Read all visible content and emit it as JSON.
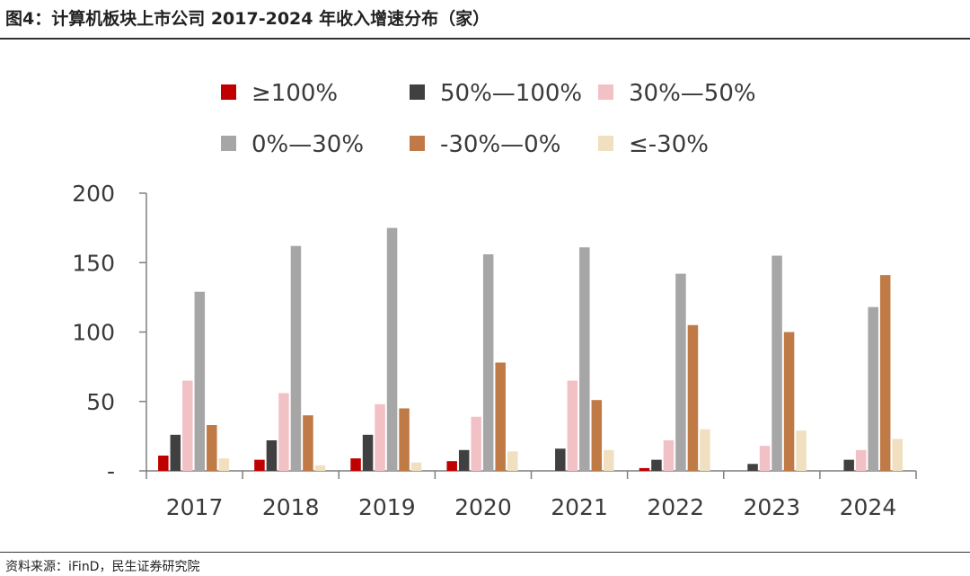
{
  "header": {
    "title": "图4：计算机板块上市公司 2017-2024 年收入增速分布（家）"
  },
  "footer": {
    "source": "资料来源：iFinD，民生证券研究院"
  },
  "chart_data": {
    "type": "bar",
    "categories": [
      "2017",
      "2018",
      "2019",
      "2020",
      "2021",
      "2022",
      "2023",
      "2024"
    ],
    "series": [
      {
        "name": "≥100%",
        "color": "#c00000",
        "values": [
          11,
          8,
          9,
          7,
          0,
          2,
          0,
          0
        ]
      },
      {
        "name": "50%—100%",
        "color": "#404040",
        "values": [
          26,
          22,
          26,
          15,
          16,
          8,
          5,
          8
        ]
      },
      {
        "name": "30%—50%",
        "color": "#f2c1c6",
        "values": [
          65,
          56,
          48,
          39,
          65,
          22,
          18,
          15
        ]
      },
      {
        "name": "0%—30%",
        "color": "#a6a6a6",
        "values": [
          129,
          162,
          175,
          156,
          161,
          142,
          155,
          118
        ]
      },
      {
        "name": "-30%—0%",
        "color": "#c07a45",
        "values": [
          33,
          40,
          45,
          78,
          51,
          105,
          100,
          141
        ]
      },
      {
        "name": "≤-30%",
        "color": "#f0e0c0",
        "values": [
          9,
          4,
          6,
          14,
          15,
          30,
          29,
          23
        ]
      }
    ],
    "yticks": [
      "-",
      "50",
      "100",
      "150",
      "200"
    ],
    "ylim": [
      0,
      200
    ],
    "legend_position": "top",
    "grid": false
  }
}
